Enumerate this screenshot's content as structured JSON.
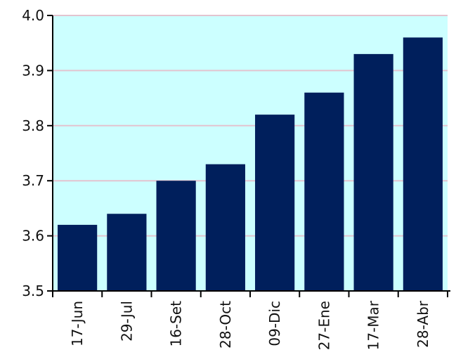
{
  "colors": {
    "plot_background": "#ccffff",
    "bar": "#001f5c",
    "gridline": "#e3c4cf",
    "axis": "#000000"
  },
  "chart_data": {
    "type": "bar",
    "title": "",
    "xlabel": "",
    "ylabel": "",
    "categories": [
      "17-Jun",
      "29-Jul",
      "16-Set",
      "28-Oct",
      "09-Dic",
      "27-Ene",
      "17-Mar",
      "28-Abr"
    ],
    "values": [
      3.62,
      3.64,
      3.7,
      3.73,
      3.82,
      3.86,
      3.93,
      3.96
    ],
    "ylim": [
      3.5,
      4.0
    ],
    "yticks": [
      "3.5",
      "3.6",
      "3.7",
      "3.8",
      "3.9",
      "4.0"
    ],
    "grid": true,
    "legend": "none"
  }
}
